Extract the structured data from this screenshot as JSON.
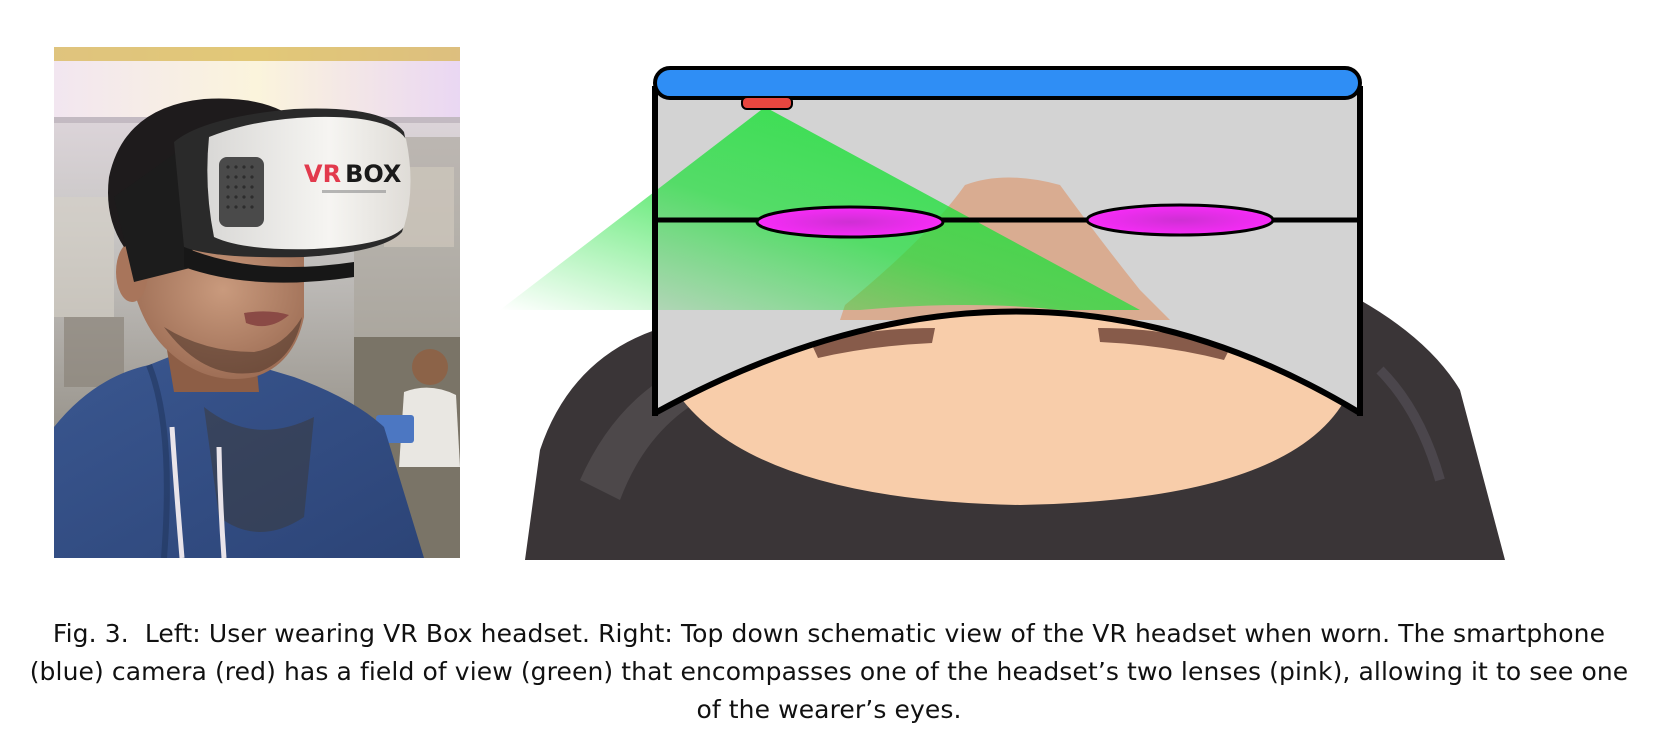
{
  "figure": {
    "photo": {
      "headset_logo_text": "VR BOX",
      "headset_logo_accent": "#e23a4d",
      "headset_logo_rest_color": "#1a1a1a"
    },
    "schematic": {
      "colors": {
        "smartphone": "#2f8ef5",
        "camera": "#e8463f",
        "field_of_view": "#1ee03a",
        "lens": "#e011e0",
        "headset_interior": "#d3d3d3",
        "skin": "#f8cdaa",
        "eyebrow": "#7a4f3f",
        "hood": "#3a3537",
        "outline": "#000000"
      }
    }
  },
  "caption": {
    "label": "Fig. 3.",
    "text": "Left: User wearing VR Box headset. Right: Top down schematic view of the VR headset when worn. The smartphone (blue) camera (red) has a field of view (green) that encompasses one of the headset’s two lenses (pink), allowing it to see one of the wearer’s eyes."
  }
}
